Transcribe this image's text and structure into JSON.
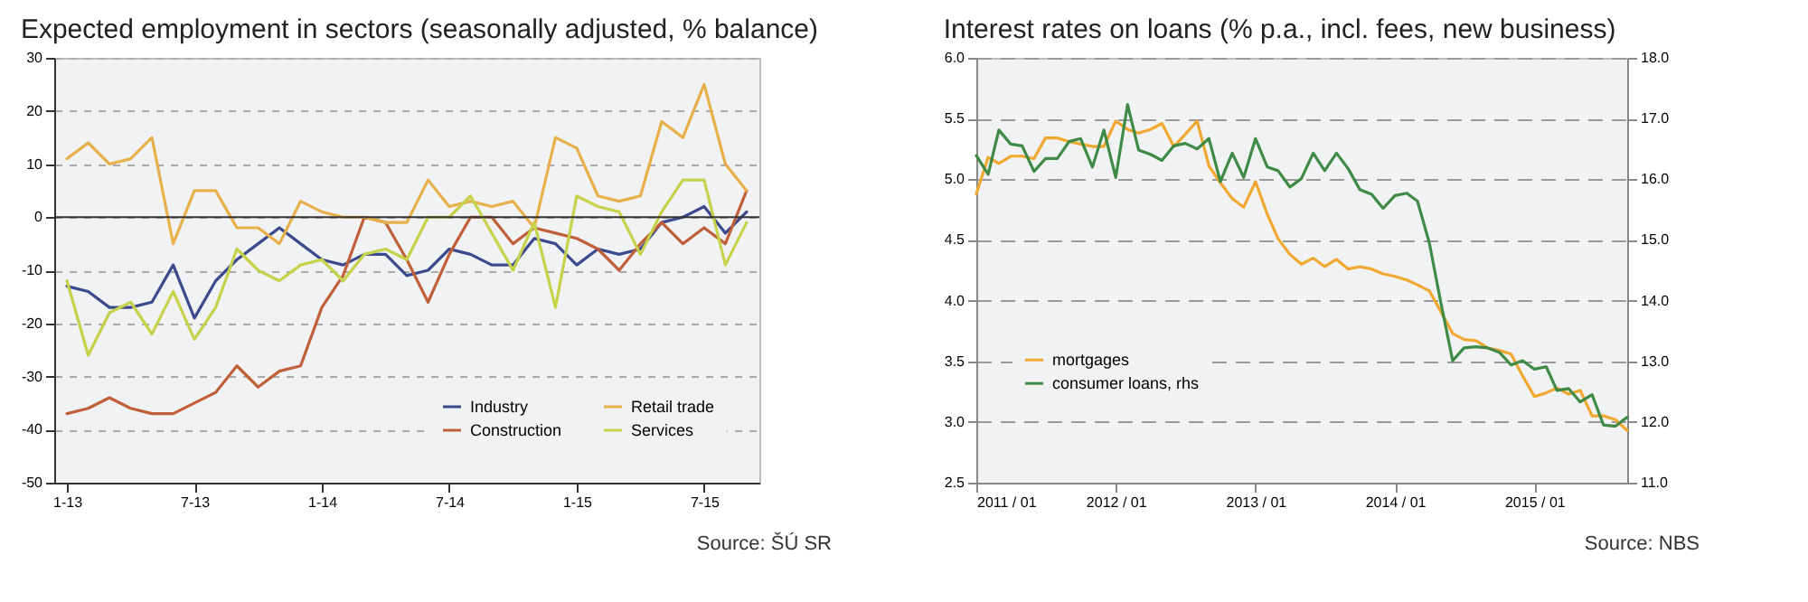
{
  "chart_data": [
    {
      "type": "line",
      "title": "Expected employment in sectors (seasonally adjusted, % balance)",
      "categories": [
        "1-13",
        null,
        null,
        null,
        null,
        null,
        "7-13",
        null,
        null,
        null,
        null,
        null,
        "1-14",
        null,
        null,
        null,
        null,
        null,
        "7-14",
        null,
        null,
        null,
        null,
        null,
        "1-15",
        null,
        null,
        null,
        null,
        null,
        "7-15",
        null,
        null
      ],
      "series": [
        {
          "name": "Industry",
          "color": "#3b4a8c",
          "values": [
            -13,
            -14,
            -17,
            -17,
            -16,
            -9,
            -19,
            -12,
            -8,
            -5,
            -2,
            -5,
            -8,
            -9,
            -7,
            -7,
            -11,
            -10,
            -6,
            -7,
            -9,
            -9,
            -4,
            -5,
            -9,
            -6,
            -7,
            -6,
            -1,
            0,
            2,
            -3,
            1
          ]
        },
        {
          "name": "Construction",
          "color": "#c0603a",
          "values": [
            -37,
            -36,
            -34,
            -36,
            -37,
            -37,
            -35,
            -33,
            -28,
            -32,
            -29,
            -28,
            -17,
            -11,
            0,
            -1,
            -8,
            -16,
            -7,
            0,
            0,
            -5,
            -2,
            -3,
            -4,
            -6,
            -10,
            -5,
            -1,
            -5,
            -2,
            -5,
            5
          ]
        },
        {
          "name": "Retail trade",
          "color": "#e8b04a",
          "values": [
            11,
            14,
            10,
            11,
            15,
            -5,
            5,
            5,
            -2,
            -2,
            -5,
            3,
            1,
            0,
            0,
            -1,
            -1,
            7,
            2,
            3,
            2,
            3,
            -2,
            15,
            13,
            4,
            3,
            4,
            18,
            15,
            25,
            10,
            5
          ]
        },
        {
          "name": "Services",
          "color": "#c5d24a",
          "values": [
            -12,
            -26,
            -18,
            -16,
            -22,
            -14,
            -23,
            -17,
            -6,
            -10,
            -12,
            -9,
            -8,
            -12,
            -7,
            -6,
            -8,
            0,
            0,
            4,
            -3,
            -10,
            -1,
            -17,
            4,
            2,
            1,
            -7,
            1,
            7,
            7,
            -9,
            -1
          ]
        }
      ],
      "ylim": [
        -50,
        30
      ],
      "yticks": [
        -50,
        -40,
        -30,
        -20,
        -10,
        0,
        10,
        20,
        30
      ],
      "grid": "y",
      "legend": "bottom right",
      "ref_lines": [
        {
          "axis": "y",
          "value": 0,
          "color": "#333333"
        }
      ],
      "annotations": [
        "Source: ŠÚ SR"
      ]
    },
    {
      "type": "line",
      "title": "Interest rates on loans (% p.a., incl. fees, new business)",
      "x": [
        "2011-01",
        "2011-02",
        "2011-03",
        "2011-04",
        "2011-05",
        "2011-06",
        "2011-07",
        "2011-08",
        "2011-09",
        "2011-10",
        "2011-11",
        "2011-12",
        "2012-01",
        "2012-02",
        "2012-03",
        "2012-04",
        "2012-05",
        "2012-06",
        "2012-07",
        "2012-08",
        "2012-09",
        "2012-10",
        "2012-11",
        "2012-12",
        "2013-01",
        "2013-02",
        "2013-03",
        "2013-04",
        "2013-05",
        "2013-06",
        "2013-07",
        "2013-08",
        "2013-09",
        "2013-10",
        "2013-11",
        "2013-12",
        "2014-01",
        "2014-02",
        "2014-03",
        "2014-04",
        "2014-05",
        "2014-06",
        "2014-07",
        "2014-08",
        "2014-09",
        "2014-10",
        "2014-11",
        "2014-12",
        "2015-01",
        "2015-02",
        "2015-03",
        "2015-04",
        "2015-05",
        "2015-06",
        "2015-07",
        "2015-08",
        "2015-09"
      ],
      "series": [
        {
          "name": "mortgages",
          "color": "#f0a830",
          "values": [
            4.88,
            5.18,
            5.13,
            5.19,
            5.19,
            5.17,
            5.34,
            5.34,
            5.31,
            5.29,
            5.27,
            5.27,
            5.48,
            5.41,
            5.38,
            5.41,
            5.46,
            5.27,
            5.37,
            5.48,
            5.11,
            4.97,
            4.84,
            4.77,
            4.98,
            4.71,
            4.51,
            4.38,
            4.3,
            4.35,
            4.28,
            4.34,
            4.26,
            4.28,
            4.26,
            4.22,
            4.2,
            4.17,
            4.13,
            4.08,
            3.91,
            3.73,
            3.68,
            3.67,
            3.61,
            3.59,
            3.56,
            3.38,
            3.21,
            3.24,
            3.28,
            3.23,
            3.26,
            3.05,
            3.05,
            3.02,
            2.93
          ]
        },
        {
          "name": "consumer loans, rhs",
          "color": "#3f8a45",
          "axis": "y2",
          "values": [
            16.39,
            16.08,
            16.81,
            16.58,
            16.55,
            16.13,
            16.34,
            16.34,
            16.62,
            16.67,
            16.2,
            16.81,
            16.03,
            17.23,
            16.48,
            16.41,
            16.31,
            16.55,
            16.59,
            16.5,
            16.67,
            15.96,
            16.43,
            16.03,
            16.67,
            16.2,
            16.14,
            15.87,
            16.01,
            16.43,
            16.14,
            16.43,
            16.17,
            15.83,
            15.75,
            15.52,
            15.73,
            15.77,
            15.64,
            14.95,
            13.97,
            13.01,
            13.22,
            13.24,
            13.22,
            13.15,
            12.94,
            13.01,
            12.87,
            12.91,
            12.52,
            12.55,
            12.33,
            12.45,
            11.95,
            11.93,
            12.08
          ]
        }
      ],
      "xlim": [
        "2011-01",
        "2015-09"
      ],
      "xticks": [
        {
          "value": "2011-01",
          "label": "2011 / 01"
        },
        {
          "value": "2012-01",
          "label": "2012 / 01"
        },
        {
          "value": "2013-01",
          "label": "2013 / 01"
        },
        {
          "value": "2014-01",
          "label": "2014 / 01"
        },
        {
          "value": "2015-01",
          "label": "2015 / 01"
        }
      ],
      "ylim": [
        2.5,
        6.0
      ],
      "yticks": [
        {
          "value": 2.5,
          "label": "2.5"
        },
        {
          "value": 3,
          "label": "3.0"
        },
        {
          "value": 3.5,
          "label": "3.5"
        },
        {
          "value": 4,
          "label": "4.0"
        },
        {
          "value": 4.5,
          "label": "4.5"
        },
        {
          "value": 5,
          "label": "5.0"
        },
        {
          "value": 5.5,
          "label": "5.5"
        },
        {
          "value": 6,
          "label": "6.0"
        }
      ],
      "y2lim": [
        11,
        18
      ],
      "y2ticks": [
        {
          "value": 11,
          "label": "11.0"
        },
        {
          "value": 12,
          "label": "12.0"
        },
        {
          "value": 13,
          "label": "13.0"
        },
        {
          "value": 14,
          "label": "14.0"
        },
        {
          "value": 15,
          "label": "15.0"
        },
        {
          "value": 16,
          "label": "16.0"
        },
        {
          "value": 17,
          "label": "17.0"
        },
        {
          "value": 18,
          "label": "18.0"
        }
      ],
      "grid": "y",
      "legend": "bottom left",
      "annotations": [
        "Source: NBS"
      ]
    }
  ]
}
